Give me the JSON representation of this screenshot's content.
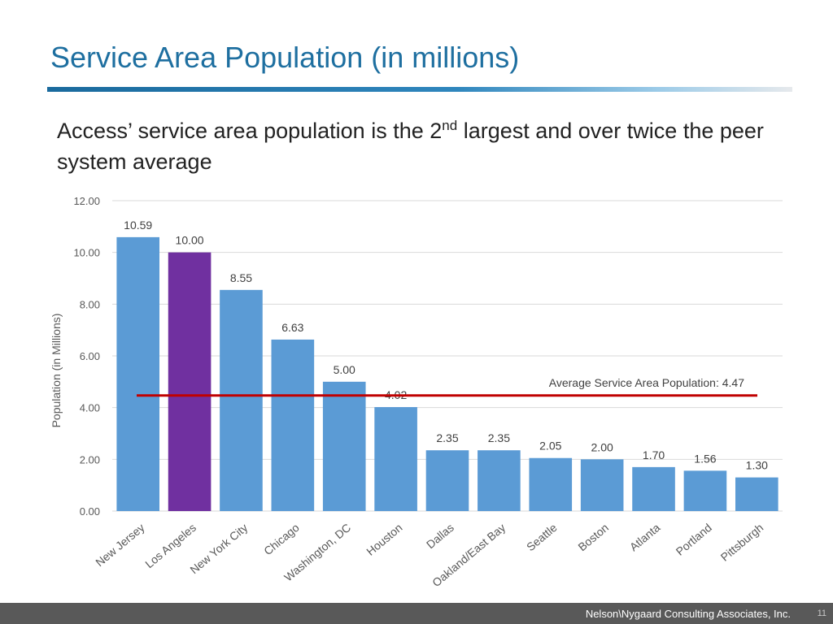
{
  "slide": {
    "title": "Service Area Population (in millions)",
    "subtitle_part1": "Access’ service area population is the 2",
    "subtitle_sup": "nd",
    "subtitle_part2": " largest and over twice the peer system average",
    "footer_company": "Nelson\\Nygaard Consulting Associates, Inc.",
    "page_number": "11"
  },
  "colors": {
    "bar": "#5b9bd5",
    "highlight": "#7030a0",
    "average_line": "#c00000",
    "grid": "#d9d9d9",
    "axis_text": "#595959"
  },
  "chart_data": {
    "type": "bar",
    "title": "",
    "xlabel": "",
    "ylabel": "Population (in Millions)",
    "ylim": [
      0,
      12
    ],
    "yticks": [
      0,
      2,
      4,
      6,
      8,
      10,
      12
    ],
    "ytick_labels": [
      "0.00",
      "2.00",
      "4.00",
      "6.00",
      "8.00",
      "10.00",
      "12.00"
    ],
    "grid": true,
    "categories": [
      "New Jersey",
      "Los Angeles",
      "New York City",
      "Chicago",
      "Washington, DC",
      "Houston",
      "Dallas",
      "Oakland/East Bay",
      "Seattle",
      "Boston",
      "Atlanta",
      "Portland",
      "Pittsburgh"
    ],
    "values": [
      10.59,
      10.0,
      8.55,
      6.63,
      5.0,
      4.02,
      2.35,
      2.35,
      2.05,
      2.0,
      1.7,
      1.56,
      1.3
    ],
    "value_labels": [
      "10.59",
      "10.00",
      "8.55",
      "6.63",
      "5.00",
      "4.02",
      "2.35",
      "2.35",
      "2.05",
      "2.00",
      "1.70",
      "1.56",
      "1.30"
    ],
    "highlight_category": "Los Angeles",
    "average": {
      "value": 4.47,
      "label": "Average Service Area Population: 4.47"
    }
  }
}
